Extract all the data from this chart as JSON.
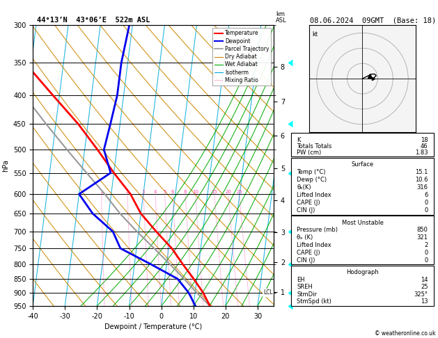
{
  "title_left": "44°13’N  43°06’E  522m ASL",
  "title_right": "08.06.2024  09GMT  (Base: 18)",
  "xlabel": "Dewpoint / Temperature (°C)",
  "ylabel_left": "hPa",
  "pressure_levels": [
    300,
    350,
    400,
    450,
    500,
    550,
    600,
    650,
    700,
    750,
    800,
    850,
    900,
    950
  ],
  "p_min": 300,
  "p_max": 950,
  "t_min": -40,
  "t_max": 35,
  "skew_deg": 22.0,
  "temperature_profile": {
    "pressure": [
      950,
      900,
      850,
      800,
      750,
      700,
      650,
      600,
      550,
      500,
      450,
      400,
      350,
      300
    ],
    "temp": [
      15.1,
      12.5,
      9.0,
      5.0,
      1.0,
      -4.5,
      -10.0,
      -14.0,
      -20.0,
      -26.0,
      -33.0,
      -42.0,
      -52.0,
      -56.0
    ]
  },
  "dewpoint_profile": {
    "pressure": [
      950,
      900,
      850,
      800,
      750,
      700,
      650,
      600,
      550,
      500,
      450,
      400,
      350,
      300
    ],
    "temp": [
      10.6,
      8.0,
      4.0,
      -5.0,
      -15.0,
      -18.0,
      -25.0,
      -30.0,
      -21.0,
      -24.0,
      -23.0,
      -22.0,
      -22.0,
      -21.0
    ]
  },
  "parcel_profile": {
    "pressure": [
      950,
      900,
      850,
      800,
      750,
      700,
      650,
      600,
      550,
      500,
      450,
      400,
      350,
      300
    ],
    "temp": [
      15.1,
      10.5,
      6.0,
      1.0,
      -4.5,
      -10.5,
      -16.5,
      -22.0,
      -28.5,
      -35.5,
      -43.0,
      -51.0,
      -57.0,
      -60.0
    ]
  },
  "lcl_pressure": 900,
  "mixing_ratio_values": [
    1,
    2,
    3,
    4,
    5,
    6,
    8,
    10,
    15,
    20,
    25
  ],
  "km_ticks": [
    1,
    2,
    3,
    4,
    5,
    6,
    7,
    8
  ],
  "stats": {
    "K": 18,
    "Totals Totals": 46,
    "PW (cm)": "1.83",
    "Surface": {
      "Temp (C)": "15.1",
      "Dewp (C)": "10.6",
      "theta_e (K)": 316,
      "Lifted Index": 6,
      "CAPE (J)": 0,
      "CIN (J)": 0
    },
    "Most Unstable": {
      "Pressure (mb)": 850,
      "theta_e (K)": 321,
      "Lifted Index": 2,
      "CAPE (J)": 0,
      "CIN (J)": 0
    },
    "Hodograph": {
      "EH": 14,
      "SREH": 25,
      "StmDir": "325°",
      "StmSpd (kt)": 13
    }
  },
  "colors": {
    "temperature": "#ff0000",
    "dewpoint": "#0000ee",
    "parcel": "#999999",
    "dry_adiabat": "#cc8800",
    "wet_adiabat": "#00aa00",
    "isotherm": "#00aadd",
    "mixing_ratio": "#ff44aa",
    "background": "#ffffff",
    "grid": "#000000"
  },
  "hodograph": {
    "u": [
      0,
      3,
      5,
      7,
      6,
      4,
      3,
      2
    ],
    "v": [
      0,
      2,
      3,
      4,
      3,
      2,
      1,
      0
    ],
    "storm_u": 5,
    "storm_v": 2
  }
}
